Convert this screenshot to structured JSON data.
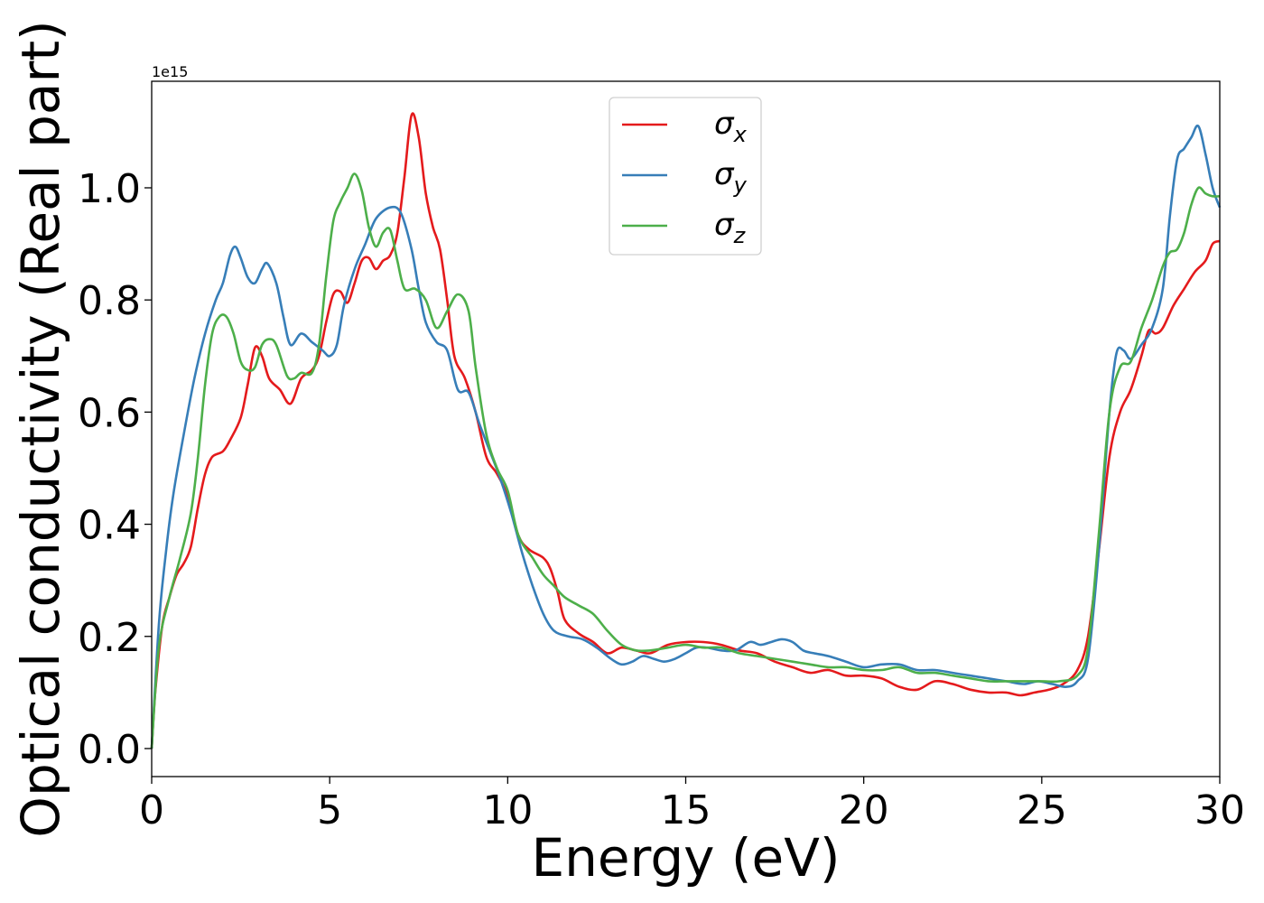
{
  "chart_data": {
    "type": "line",
    "title": "",
    "xlabel": "Energy (eV)",
    "ylabel": "Optical conductivity (Real part)",
    "offset_text": "1e15",
    "xlim": [
      0,
      30
    ],
    "ylim": [
      -0.05,
      1.19
    ],
    "xticks": [
      0,
      5,
      10,
      15,
      20,
      25,
      30
    ],
    "xtick_labels": [
      "0",
      "5",
      "10",
      "15",
      "20",
      "25",
      "30"
    ],
    "yticks": [
      0.0,
      0.2,
      0.4,
      0.6,
      0.8,
      1.0
    ],
    "ytick_labels": [
      "0.0",
      "0.2",
      "0.4",
      "0.6",
      "0.8",
      "1.0"
    ],
    "grid": false,
    "legend_position": "upper-center",
    "series": [
      {
        "name": "σx",
        "symbol": "σ",
        "subscript": "x",
        "color": "#e41a1c",
        "points": [
          [
            0,
            0
          ],
          [
            0.1,
            0.1
          ],
          [
            0.3,
            0.22
          ],
          [
            0.5,
            0.27
          ],
          [
            0.7,
            0.31
          ],
          [
            0.9,
            0.33
          ],
          [
            1.1,
            0.36
          ],
          [
            1.3,
            0.43
          ],
          [
            1.5,
            0.49
          ],
          [
            1.7,
            0.52
          ],
          [
            2.0,
            0.53
          ],
          [
            2.2,
            0.55
          ],
          [
            2.5,
            0.59
          ],
          [
            2.7,
            0.65
          ],
          [
            2.9,
            0.715
          ],
          [
            3.1,
            0.7
          ],
          [
            3.3,
            0.66
          ],
          [
            3.6,
            0.64
          ],
          [
            3.9,
            0.615
          ],
          [
            4.2,
            0.66
          ],
          [
            4.5,
            0.675
          ],
          [
            4.7,
            0.7
          ],
          [
            4.9,
            0.76
          ],
          [
            5.1,
            0.81
          ],
          [
            5.3,
            0.815
          ],
          [
            5.5,
            0.795
          ],
          [
            5.7,
            0.83
          ],
          [
            5.9,
            0.87
          ],
          [
            6.1,
            0.875
          ],
          [
            6.3,
            0.855
          ],
          [
            6.5,
            0.87
          ],
          [
            6.7,
            0.88
          ],
          [
            6.9,
            0.92
          ],
          [
            7.1,
            1.02
          ],
          [
            7.3,
            1.13
          ],
          [
            7.5,
            1.09
          ],
          [
            7.7,
            0.99
          ],
          [
            7.9,
            0.93
          ],
          [
            8.1,
            0.89
          ],
          [
            8.3,
            0.8
          ],
          [
            8.5,
            0.7
          ],
          [
            8.8,
            0.66
          ],
          [
            9.1,
            0.6
          ],
          [
            9.4,
            0.52
          ],
          [
            9.7,
            0.49
          ],
          [
            10.0,
            0.45
          ],
          [
            10.3,
            0.38
          ],
          [
            10.6,
            0.355
          ],
          [
            11.0,
            0.34
          ],
          [
            11.2,
            0.32
          ],
          [
            11.4,
            0.28
          ],
          [
            11.6,
            0.23
          ],
          [
            12.0,
            0.205
          ],
          [
            12.4,
            0.19
          ],
          [
            12.8,
            0.17
          ],
          [
            13.2,
            0.18
          ],
          [
            13.6,
            0.175
          ],
          [
            14.0,
            0.17
          ],
          [
            14.5,
            0.185
          ],
          [
            15.0,
            0.19
          ],
          [
            15.5,
            0.19
          ],
          [
            16.0,
            0.185
          ],
          [
            16.5,
            0.175
          ],
          [
            17.0,
            0.17
          ],
          [
            17.5,
            0.155
          ],
          [
            18.0,
            0.145
          ],
          [
            18.5,
            0.135
          ],
          [
            19.0,
            0.14
          ],
          [
            19.5,
            0.13
          ],
          [
            20.0,
            0.13
          ],
          [
            20.5,
            0.125
          ],
          [
            21.0,
            0.11
          ],
          [
            21.5,
            0.105
          ],
          [
            22.0,
            0.12
          ],
          [
            22.5,
            0.115
          ],
          [
            23.0,
            0.105
          ],
          [
            23.5,
            0.1
          ],
          [
            24.0,
            0.1
          ],
          [
            24.4,
            0.095
          ],
          [
            24.8,
            0.1
          ],
          [
            25.2,
            0.105
          ],
          [
            25.6,
            0.115
          ],
          [
            26.0,
            0.14
          ],
          [
            26.3,
            0.2
          ],
          [
            26.6,
            0.35
          ],
          [
            26.9,
            0.52
          ],
          [
            27.2,
            0.6
          ],
          [
            27.5,
            0.64
          ],
          [
            27.8,
            0.7
          ],
          [
            28.0,
            0.745
          ],
          [
            28.2,
            0.74
          ],
          [
            28.4,
            0.75
          ],
          [
            28.7,
            0.79
          ],
          [
            29.0,
            0.82
          ],
          [
            29.3,
            0.85
          ],
          [
            29.6,
            0.87
          ],
          [
            29.8,
            0.9
          ],
          [
            30.0,
            0.905
          ]
        ]
      },
      {
        "name": "σy",
        "symbol": "σ",
        "subscript": "y",
        "color": "#377eb8",
        "points": [
          [
            0,
            0
          ],
          [
            0.2,
            0.22
          ],
          [
            0.4,
            0.35
          ],
          [
            0.6,
            0.45
          ],
          [
            0.9,
            0.56
          ],
          [
            1.2,
            0.66
          ],
          [
            1.5,
            0.74
          ],
          [
            1.8,
            0.8
          ],
          [
            2.0,
            0.83
          ],
          [
            2.2,
            0.88
          ],
          [
            2.35,
            0.895
          ],
          [
            2.5,
            0.875
          ],
          [
            2.7,
            0.84
          ],
          [
            2.9,
            0.83
          ],
          [
            3.1,
            0.855
          ],
          [
            3.25,
            0.865
          ],
          [
            3.5,
            0.83
          ],
          [
            3.7,
            0.77
          ],
          [
            3.9,
            0.72
          ],
          [
            4.2,
            0.74
          ],
          [
            4.5,
            0.725
          ],
          [
            4.8,
            0.71
          ],
          [
            5.0,
            0.7
          ],
          [
            5.2,
            0.72
          ],
          [
            5.4,
            0.79
          ],
          [
            5.7,
            0.855
          ],
          [
            6.0,
            0.9
          ],
          [
            6.3,
            0.945
          ],
          [
            6.7,
            0.965
          ],
          [
            7.0,
            0.955
          ],
          [
            7.3,
            0.89
          ],
          [
            7.5,
            0.82
          ],
          [
            7.7,
            0.76
          ],
          [
            8.0,
            0.725
          ],
          [
            8.3,
            0.71
          ],
          [
            8.6,
            0.64
          ],
          [
            8.9,
            0.635
          ],
          [
            9.2,
            0.58
          ],
          [
            9.5,
            0.53
          ],
          [
            9.8,
            0.48
          ],
          [
            10.1,
            0.42
          ],
          [
            10.4,
            0.35
          ],
          [
            10.7,
            0.29
          ],
          [
            11.0,
            0.24
          ],
          [
            11.3,
            0.21
          ],
          [
            11.7,
            0.2
          ],
          [
            12.1,
            0.195
          ],
          [
            12.5,
            0.18
          ],
          [
            12.9,
            0.16
          ],
          [
            13.2,
            0.15
          ],
          [
            13.5,
            0.155
          ],
          [
            13.8,
            0.165
          ],
          [
            14.1,
            0.16
          ],
          [
            14.4,
            0.155
          ],
          [
            14.7,
            0.16
          ],
          [
            15.0,
            0.17
          ],
          [
            15.3,
            0.18
          ],
          [
            15.6,
            0.18
          ],
          [
            16.0,
            0.175
          ],
          [
            16.4,
            0.175
          ],
          [
            16.8,
            0.19
          ],
          [
            17.1,
            0.185
          ],
          [
            17.4,
            0.19
          ],
          [
            17.7,
            0.195
          ],
          [
            18.0,
            0.19
          ],
          [
            18.3,
            0.175
          ],
          [
            18.6,
            0.17
          ],
          [
            19.0,
            0.165
          ],
          [
            19.5,
            0.155
          ],
          [
            20.0,
            0.145
          ],
          [
            20.5,
            0.15
          ],
          [
            21.0,
            0.15
          ],
          [
            21.5,
            0.14
          ],
          [
            22.0,
            0.14
          ],
          [
            22.5,
            0.135
          ],
          [
            23.0,
            0.13
          ],
          [
            23.5,
            0.125
          ],
          [
            24.0,
            0.12
          ],
          [
            24.5,
            0.115
          ],
          [
            24.9,
            0.12
          ],
          [
            25.3,
            0.115
          ],
          [
            25.7,
            0.11
          ],
          [
            26.0,
            0.12
          ],
          [
            26.3,
            0.16
          ],
          [
            26.6,
            0.35
          ],
          [
            26.9,
            0.6
          ],
          [
            27.1,
            0.705
          ],
          [
            27.3,
            0.71
          ],
          [
            27.5,
            0.695
          ],
          [
            27.8,
            0.72
          ],
          [
            28.1,
            0.75
          ],
          [
            28.4,
            0.82
          ],
          [
            28.6,
            0.95
          ],
          [
            28.8,
            1.05
          ],
          [
            29.0,
            1.07
          ],
          [
            29.2,
            1.09
          ],
          [
            29.4,
            1.11
          ],
          [
            29.6,
            1.06
          ],
          [
            29.8,
            1.0
          ],
          [
            30.0,
            0.965
          ]
        ]
      },
      {
        "name": "σz",
        "symbol": "σ",
        "subscript": "z",
        "color": "#4daf4a",
        "points": [
          [
            0,
            0
          ],
          [
            0.2,
            0.18
          ],
          [
            0.5,
            0.27
          ],
          [
            0.8,
            0.34
          ],
          [
            1.1,
            0.42
          ],
          [
            1.3,
            0.52
          ],
          [
            1.5,
            0.65
          ],
          [
            1.7,
            0.74
          ],
          [
            1.9,
            0.77
          ],
          [
            2.1,
            0.77
          ],
          [
            2.3,
            0.74
          ],
          [
            2.5,
            0.69
          ],
          [
            2.7,
            0.675
          ],
          [
            2.9,
            0.68
          ],
          [
            3.1,
            0.72
          ],
          [
            3.3,
            0.73
          ],
          [
            3.5,
            0.72
          ],
          [
            3.8,
            0.665
          ],
          [
            4.0,
            0.66
          ],
          [
            4.2,
            0.67
          ],
          [
            4.5,
            0.67
          ],
          [
            4.7,
            0.72
          ],
          [
            4.9,
            0.84
          ],
          [
            5.1,
            0.94
          ],
          [
            5.3,
            0.975
          ],
          [
            5.5,
            1.0
          ],
          [
            5.7,
            1.025
          ],
          [
            5.9,
            0.995
          ],
          [
            6.1,
            0.93
          ],
          [
            6.3,
            0.895
          ],
          [
            6.5,
            0.92
          ],
          [
            6.7,
            0.925
          ],
          [
            6.9,
            0.87
          ],
          [
            7.1,
            0.82
          ],
          [
            7.4,
            0.82
          ],
          [
            7.7,
            0.8
          ],
          [
            8.0,
            0.75
          ],
          [
            8.3,
            0.78
          ],
          [
            8.6,
            0.81
          ],
          [
            8.9,
            0.78
          ],
          [
            9.1,
            0.68
          ],
          [
            9.4,
            0.56
          ],
          [
            9.7,
            0.5
          ],
          [
            10.0,
            0.46
          ],
          [
            10.3,
            0.38
          ],
          [
            10.7,
            0.34
          ],
          [
            11.0,
            0.31
          ],
          [
            11.3,
            0.29
          ],
          [
            11.6,
            0.27
          ],
          [
            12.0,
            0.255
          ],
          [
            12.4,
            0.24
          ],
          [
            12.8,
            0.21
          ],
          [
            13.2,
            0.185
          ],
          [
            13.6,
            0.175
          ],
          [
            14.0,
            0.175
          ],
          [
            14.5,
            0.18
          ],
          [
            15.0,
            0.185
          ],
          [
            15.5,
            0.18
          ],
          [
            16.0,
            0.18
          ],
          [
            16.5,
            0.17
          ],
          [
            17.0,
            0.165
          ],
          [
            17.5,
            0.16
          ],
          [
            18.0,
            0.155
          ],
          [
            18.5,
            0.15
          ],
          [
            19.0,
            0.145
          ],
          [
            19.5,
            0.145
          ],
          [
            20.0,
            0.14
          ],
          [
            20.5,
            0.14
          ],
          [
            21.0,
            0.145
          ],
          [
            21.5,
            0.135
          ],
          [
            22.0,
            0.135
          ],
          [
            22.5,
            0.13
          ],
          [
            23.0,
            0.125
          ],
          [
            23.5,
            0.12
          ],
          [
            24.0,
            0.12
          ],
          [
            24.5,
            0.12
          ],
          [
            25.0,
            0.12
          ],
          [
            25.5,
            0.12
          ],
          [
            26.0,
            0.13
          ],
          [
            26.3,
            0.18
          ],
          [
            26.6,
            0.38
          ],
          [
            26.9,
            0.6
          ],
          [
            27.2,
            0.68
          ],
          [
            27.5,
            0.69
          ],
          [
            27.8,
            0.75
          ],
          [
            28.1,
            0.8
          ],
          [
            28.4,
            0.86
          ],
          [
            28.6,
            0.885
          ],
          [
            28.8,
            0.89
          ],
          [
            29.0,
            0.92
          ],
          [
            29.2,
            0.97
          ],
          [
            29.4,
            1.0
          ],
          [
            29.6,
            0.99
          ],
          [
            29.8,
            0.985
          ],
          [
            30.0,
            0.985
          ]
        ]
      }
    ]
  }
}
